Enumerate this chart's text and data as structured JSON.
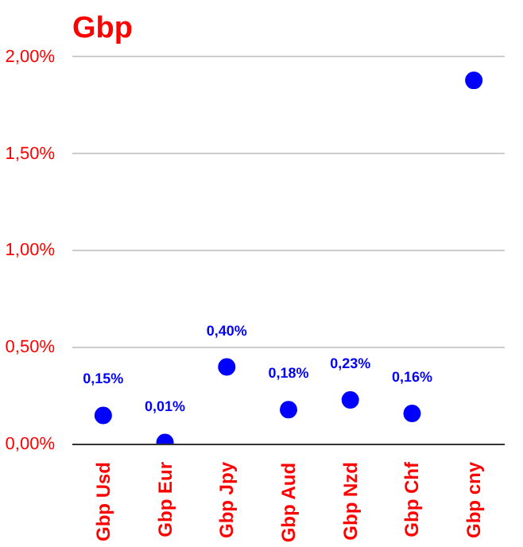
{
  "chart_data": {
    "type": "scatter",
    "title": "Gbp",
    "categories": [
      "Gbp Usd",
      "Gbp Eur",
      "Gbp Jpy",
      "Gbp Aud",
      "Gbp Nzd",
      "Gbp Chf",
      "Gbp cny"
    ],
    "series": [
      {
        "color": "#0000ff",
        "values": [
          0.15,
          0.01,
          0.4,
          0.18,
          0.23,
          0.16,
          1.88
        ],
        "value_labels": [
          "0,15%",
          "0,01%",
          "0,40%",
          "0,18%",
          "0,23%",
          "0,16%",
          null
        ]
      }
    ],
    "ylim": [
      0,
      2.02
    ],
    "yticks": [
      {
        "value": 0,
        "label": "0,00%"
      },
      {
        "value": 0.5,
        "label": "0,50%"
      },
      {
        "value": 1.0,
        "label": "1,00%"
      },
      {
        "value": 1.5,
        "label": "1,50%"
      },
      {
        "value": 2.0,
        "label": "2,00%"
      }
    ],
    "grid": "y",
    "marker": "circle"
  }
}
